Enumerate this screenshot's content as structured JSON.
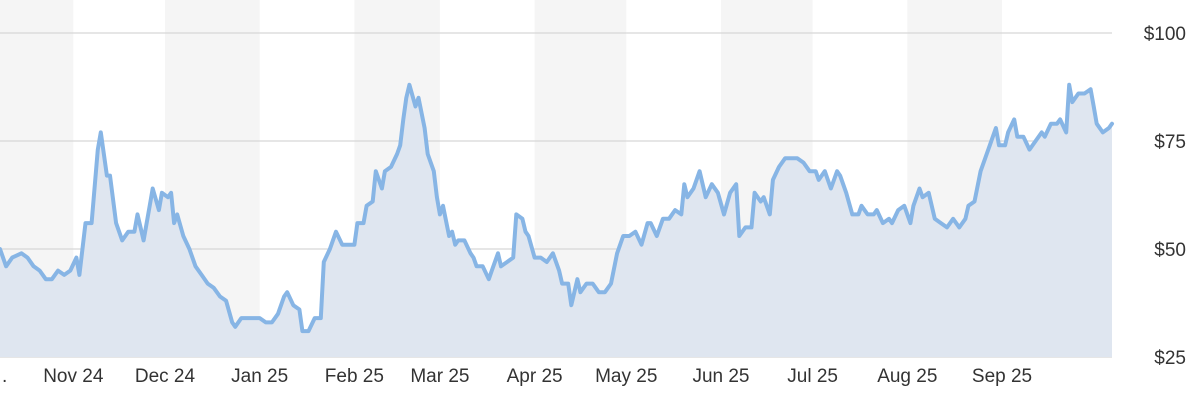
{
  "chart_data": {
    "type": "area",
    "title": "",
    "xlabel": "",
    "ylabel": "",
    "ylim": [
      25,
      100
    ],
    "grid": true,
    "legend": "none",
    "y_ticks": [
      {
        "value": 100,
        "label": "$100"
      },
      {
        "value": 75,
        "label": "$75"
      },
      {
        "value": 50,
        "label": "$50"
      },
      {
        "value": 25,
        "label": "$25"
      }
    ],
    "x_ticks": [
      {
        "date": "2024-10-01",
        "label": "."
      },
      {
        "date": "2024-11-01",
        "label": "Nov 24"
      },
      {
        "date": "2024-12-01",
        "label": "Dec 24"
      },
      {
        "date": "2025-01-01",
        "label": "Jan 25"
      },
      {
        "date": "2025-02-01",
        "label": "Feb 25"
      },
      {
        "date": "2025-03-01",
        "label": "Mar 25"
      },
      {
        "date": "2025-04-01",
        "label": "Apr 25"
      },
      {
        "date": "2025-05-01",
        "label": "May 25"
      },
      {
        "date": "2025-06-01",
        "label": "Jun 25"
      },
      {
        "date": "2025-07-01",
        "label": "Jul 25"
      },
      {
        "date": "2025-08-01",
        "label": "Aug 25"
      },
      {
        "date": "2025-09-01",
        "label": "Sep 25"
      }
    ],
    "x_range": [
      "2024-10-08",
      "2025-10-07"
    ],
    "series": [
      {
        "color": "#87b5e5",
        "fill": "#dfe6f0",
        "points": [
          [
            "2024-10-08",
            50
          ],
          [
            "2024-10-10",
            46
          ],
          [
            "2024-10-12",
            48
          ],
          [
            "2024-10-15",
            49
          ],
          [
            "2024-10-17",
            48
          ],
          [
            "2024-10-19",
            46
          ],
          [
            "2024-10-21",
            45
          ],
          [
            "2024-10-23",
            43
          ],
          [
            "2024-10-25",
            43
          ],
          [
            "2024-10-27",
            45
          ],
          [
            "2024-10-29",
            44
          ],
          [
            "2024-10-31",
            45
          ],
          [
            "2024-11-02",
            48
          ],
          [
            "2024-11-03",
            44
          ],
          [
            "2024-11-05",
            56
          ],
          [
            "2024-11-07",
            56
          ],
          [
            "2024-11-09",
            73
          ],
          [
            "2024-11-10",
            77
          ],
          [
            "2024-11-12",
            67
          ],
          [
            "2024-11-13",
            67
          ],
          [
            "2024-11-15",
            56
          ],
          [
            "2024-11-17",
            52
          ],
          [
            "2024-11-19",
            54
          ],
          [
            "2024-11-21",
            54
          ],
          [
            "2024-11-22",
            58
          ],
          [
            "2024-11-24",
            52
          ],
          [
            "2024-11-26",
            60
          ],
          [
            "2024-11-27",
            64
          ],
          [
            "2024-11-29",
            59
          ],
          [
            "2024-11-30",
            63
          ],
          [
            "2024-12-02",
            62
          ],
          [
            "2024-12-03",
            63
          ],
          [
            "2024-12-04",
            56
          ],
          [
            "2024-12-05",
            58
          ],
          [
            "2024-12-07",
            53
          ],
          [
            "2024-12-09",
            50
          ],
          [
            "2024-12-11",
            46
          ],
          [
            "2024-12-13",
            44
          ],
          [
            "2024-12-15",
            42
          ],
          [
            "2024-12-17",
            41
          ],
          [
            "2024-12-19",
            39
          ],
          [
            "2024-12-21",
            38
          ],
          [
            "2024-12-23",
            33
          ],
          [
            "2024-12-24",
            32
          ],
          [
            "2024-12-26",
            34
          ],
          [
            "2024-12-28",
            34
          ],
          [
            "2024-12-30",
            34
          ],
          [
            "2025-01-01",
            34
          ],
          [
            "2025-01-03",
            33
          ],
          [
            "2025-01-05",
            33
          ],
          [
            "2025-01-07",
            35
          ],
          [
            "2025-01-09",
            39
          ],
          [
            "2025-01-10",
            40
          ],
          [
            "2025-01-12",
            37
          ],
          [
            "2025-01-14",
            36
          ],
          [
            "2025-01-15",
            31
          ],
          [
            "2025-01-17",
            31
          ],
          [
            "2025-01-19",
            34
          ],
          [
            "2025-01-21",
            34
          ],
          [
            "2025-01-22",
            47
          ],
          [
            "2025-01-24",
            50
          ],
          [
            "2025-01-26",
            54
          ],
          [
            "2025-01-28",
            51
          ],
          [
            "2025-01-30",
            51
          ],
          [
            "2025-02-01",
            51
          ],
          [
            "2025-02-02",
            56
          ],
          [
            "2025-02-04",
            56
          ],
          [
            "2025-02-05",
            60
          ],
          [
            "2025-02-07",
            61
          ],
          [
            "2025-02-08",
            68
          ],
          [
            "2025-02-10",
            64
          ],
          [
            "2025-02-11",
            68
          ],
          [
            "2025-02-13",
            69
          ],
          [
            "2025-02-15",
            72
          ],
          [
            "2025-02-16",
            74
          ],
          [
            "2025-02-17",
            80
          ],
          [
            "2025-02-18",
            85
          ],
          [
            "2025-02-19",
            88
          ],
          [
            "2025-02-21",
            83
          ],
          [
            "2025-02-22",
            85
          ],
          [
            "2025-02-24",
            78
          ],
          [
            "2025-02-25",
            72
          ],
          [
            "2025-02-27",
            68
          ],
          [
            "2025-02-28",
            62
          ],
          [
            "2025-03-01",
            58
          ],
          [
            "2025-03-02",
            60
          ],
          [
            "2025-03-04",
            53
          ],
          [
            "2025-03-05",
            54
          ],
          [
            "2025-03-06",
            51
          ],
          [
            "2025-03-07",
            52
          ],
          [
            "2025-03-09",
            52
          ],
          [
            "2025-03-11",
            49
          ],
          [
            "2025-03-12",
            48
          ],
          [
            "2025-03-13",
            46
          ],
          [
            "2025-03-15",
            46
          ],
          [
            "2025-03-17",
            43
          ],
          [
            "2025-03-18",
            45
          ],
          [
            "2025-03-20",
            49
          ],
          [
            "2025-03-21",
            46
          ],
          [
            "2025-03-23",
            47
          ],
          [
            "2025-03-25",
            48
          ],
          [
            "2025-03-26",
            58
          ],
          [
            "2025-03-28",
            57
          ],
          [
            "2025-03-29",
            54
          ],
          [
            "2025-03-30",
            53
          ],
          [
            "2025-04-01",
            48
          ],
          [
            "2025-04-03",
            48
          ],
          [
            "2025-04-05",
            47
          ],
          [
            "2025-04-07",
            49
          ],
          [
            "2025-04-09",
            45
          ],
          [
            "2025-04-10",
            42
          ],
          [
            "2025-04-12",
            42
          ],
          [
            "2025-04-13",
            37
          ],
          [
            "2025-04-15",
            43
          ],
          [
            "2025-04-16",
            40
          ],
          [
            "2025-04-18",
            42
          ],
          [
            "2025-04-20",
            42
          ],
          [
            "2025-04-22",
            40
          ],
          [
            "2025-04-24",
            40
          ],
          [
            "2025-04-26",
            42
          ],
          [
            "2025-04-28",
            49
          ],
          [
            "2025-04-30",
            53
          ],
          [
            "2025-05-02",
            53
          ],
          [
            "2025-05-04",
            54
          ],
          [
            "2025-05-06",
            51
          ],
          [
            "2025-05-08",
            56
          ],
          [
            "2025-05-09",
            56
          ],
          [
            "2025-05-11",
            53
          ],
          [
            "2025-05-13",
            57
          ],
          [
            "2025-05-15",
            57
          ],
          [
            "2025-05-17",
            59
          ],
          [
            "2025-05-19",
            58
          ],
          [
            "2025-05-20",
            65
          ],
          [
            "2025-05-21",
            62
          ],
          [
            "2025-05-23",
            64
          ],
          [
            "2025-05-25",
            68
          ],
          [
            "2025-05-27",
            62
          ],
          [
            "2025-05-29",
            65
          ],
          [
            "2025-05-31",
            63
          ],
          [
            "2025-06-02",
            58
          ],
          [
            "2025-06-04",
            63
          ],
          [
            "2025-06-06",
            65
          ],
          [
            "2025-06-07",
            53
          ],
          [
            "2025-06-09",
            55
          ],
          [
            "2025-06-11",
            55
          ],
          [
            "2025-06-12",
            63
          ],
          [
            "2025-06-14",
            61
          ],
          [
            "2025-06-15",
            62
          ],
          [
            "2025-06-17",
            58
          ],
          [
            "2025-06-18",
            66
          ],
          [
            "2025-06-20",
            69
          ],
          [
            "2025-06-22",
            71
          ],
          [
            "2025-06-24",
            71
          ],
          [
            "2025-06-26",
            71
          ],
          [
            "2025-06-28",
            70
          ],
          [
            "2025-06-30",
            68
          ],
          [
            "2025-07-02",
            68
          ],
          [
            "2025-07-03",
            66
          ],
          [
            "2025-07-05",
            68
          ],
          [
            "2025-07-07",
            64
          ],
          [
            "2025-07-09",
            68
          ],
          [
            "2025-07-10",
            67
          ],
          [
            "2025-07-12",
            63
          ],
          [
            "2025-07-14",
            58
          ],
          [
            "2025-07-16",
            58
          ],
          [
            "2025-07-17",
            60
          ],
          [
            "2025-07-19",
            58
          ],
          [
            "2025-07-21",
            58
          ],
          [
            "2025-07-22",
            59
          ],
          [
            "2025-07-24",
            56
          ],
          [
            "2025-07-26",
            57
          ],
          [
            "2025-07-27",
            56
          ],
          [
            "2025-07-29",
            59
          ],
          [
            "2025-07-31",
            60
          ],
          [
            "2025-08-02",
            56
          ],
          [
            "2025-08-03",
            60
          ],
          [
            "2025-08-05",
            64
          ],
          [
            "2025-08-06",
            62
          ],
          [
            "2025-08-08",
            63
          ],
          [
            "2025-08-10",
            57
          ],
          [
            "2025-08-12",
            56
          ],
          [
            "2025-08-14",
            55
          ],
          [
            "2025-08-16",
            57
          ],
          [
            "2025-08-18",
            55
          ],
          [
            "2025-08-20",
            57
          ],
          [
            "2025-08-21",
            60
          ],
          [
            "2025-08-23",
            61
          ],
          [
            "2025-08-25",
            68
          ],
          [
            "2025-08-27",
            72
          ],
          [
            "2025-08-28",
            74
          ],
          [
            "2025-08-30",
            78
          ],
          [
            "2025-08-31",
            74
          ],
          [
            "2025-09-02",
            74
          ],
          [
            "2025-09-03",
            77
          ],
          [
            "2025-09-05",
            80
          ],
          [
            "2025-09-06",
            76
          ],
          [
            "2025-09-08",
            76
          ],
          [
            "2025-09-10",
            73
          ],
          [
            "2025-09-12",
            75
          ],
          [
            "2025-09-14",
            77
          ],
          [
            "2025-09-15",
            76
          ],
          [
            "2025-09-17",
            79
          ],
          [
            "2025-09-19",
            79
          ],
          [
            "2025-09-20",
            80
          ],
          [
            "2025-09-22",
            77
          ],
          [
            "2025-09-23",
            88
          ],
          [
            "2025-09-24",
            84
          ],
          [
            "2025-09-26",
            86
          ],
          [
            "2025-09-28",
            86
          ],
          [
            "2025-09-30",
            87
          ],
          [
            "2025-10-01",
            83
          ],
          [
            "2025-10-02",
            79
          ],
          [
            "2025-10-04",
            77
          ],
          [
            "2025-10-06",
            78
          ],
          [
            "2025-10-07",
            79
          ]
        ]
      }
    ]
  }
}
